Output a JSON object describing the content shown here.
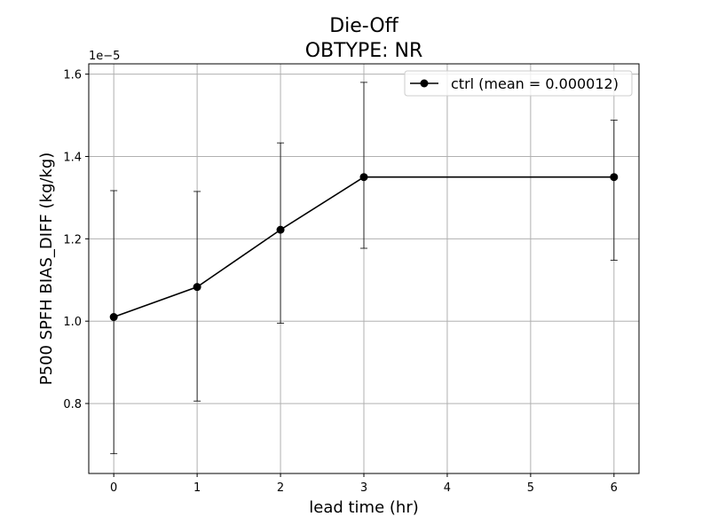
{
  "chart_data": {
    "type": "line",
    "title": "Die-Off",
    "subtitle": "OBTYPE: NR",
    "xlabel": "lead time (hr)",
    "ylabel": "P500 SPFH BIAS_DIFF (kg/kg)",
    "y_offset_label": "1e−5",
    "xlim": [
      -0.3,
      6.3
    ],
    "ylim": [
      0.63,
      1.625
    ],
    "xticks": [
      0,
      1,
      2,
      3,
      4,
      5,
      6
    ],
    "xtick_labels": [
      "0",
      "1",
      "2",
      "3",
      "4",
      "5",
      "6"
    ],
    "yticks": [
      0.8,
      1.0,
      1.2,
      1.4,
      1.6
    ],
    "ytick_labels": [
      "0.8",
      "1.0",
      "1.2",
      "1.4",
      "1.6"
    ],
    "grid": true,
    "legend_position": "top-right",
    "series": [
      {
        "name": "ctrl (mean = 0.000012)",
        "color": "#000000",
        "marker": "circle",
        "x": [
          0,
          1,
          2,
          3,
          6
        ],
        "y": [
          1.01,
          1.083,
          1.222,
          1.35,
          1.35
        ],
        "err_low": [
          0.678,
          0.806,
          0.995,
          1.177,
          1.148
        ],
        "err_high": [
          1.317,
          1.315,
          1.433,
          1.58,
          1.488
        ]
      }
    ]
  }
}
